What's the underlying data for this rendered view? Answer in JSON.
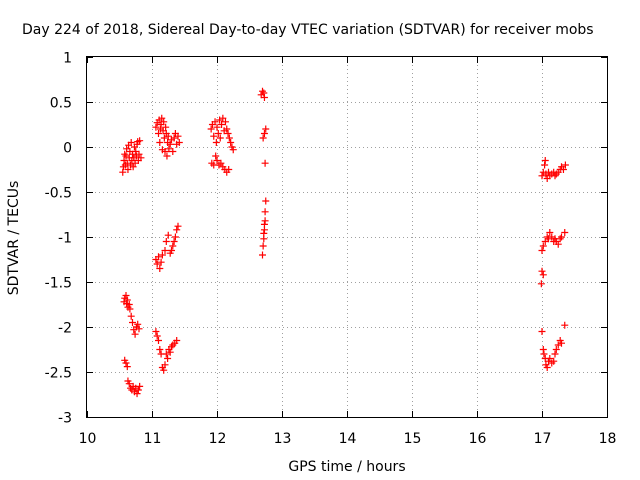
{
  "chart_data": {
    "type": "scatter",
    "title": "Day 224 of 2018, Sidereal Day-to-day VTEC variation (SDTVAR) for receiver mobs",
    "xlabel": "GPS time / hours",
    "ylabel": "SDTVAR / TECUs",
    "xlim": [
      10,
      18
    ],
    "ylim": [
      -3,
      1
    ],
    "xticks": [
      "10",
      "11",
      "12",
      "13",
      "14",
      "15",
      "16",
      "17",
      "18"
    ],
    "yticks": [
      "1",
      "0.5",
      "0",
      "-0.5",
      "-1",
      "-1.5",
      "-2",
      "-2.5",
      "-3"
    ],
    "grid": true,
    "marker": "plus",
    "color": "#ff0000",
    "series": [
      {
        "name": "SDTVAR",
        "points": [
          [
            10.55,
            -0.28
          ],
          [
            10.56,
            -0.22
          ],
          [
            10.57,
            -0.15
          ],
          [
            10.58,
            -0.08
          ],
          [
            10.59,
            -0.2
          ],
          [
            10.6,
            -0.1
          ],
          [
            10.61,
            -0.02
          ],
          [
            10.62,
            -0.18
          ],
          [
            10.63,
            -0.25
          ],
          [
            10.64,
            0.02
          ],
          [
            10.65,
            -0.12
          ],
          [
            10.66,
            -0.05
          ],
          [
            10.67,
            -0.2
          ],
          [
            10.68,
            0.05
          ],
          [
            10.69,
            -0.15
          ],
          [
            10.7,
            -0.08
          ],
          [
            10.71,
            -0.22
          ],
          [
            10.72,
            -0.12
          ],
          [
            10.73,
            0.0
          ],
          [
            10.74,
            -0.18
          ],
          [
            10.75,
            -0.05
          ],
          [
            10.76,
            -0.1
          ],
          [
            10.77,
            0.03
          ],
          [
            10.78,
            0.06
          ],
          [
            10.79,
            -0.15
          ],
          [
            10.8,
            -0.08
          ],
          [
            10.81,
            0.07
          ],
          [
            10.83,
            -0.12
          ],
          [
            10.57,
            -1.72
          ],
          [
            10.58,
            -1.68
          ],
          [
            10.6,
            -1.65
          ],
          [
            10.61,
            -1.74
          ],
          [
            10.62,
            -1.7
          ],
          [
            10.63,
            -1.78
          ],
          [
            10.65,
            -1.75
          ],
          [
            10.66,
            -1.8
          ],
          [
            10.68,
            -1.88
          ],
          [
            10.7,
            -1.95
          ],
          [
            10.72,
            -2.03
          ],
          [
            10.74,
            -2.08
          ],
          [
            10.76,
            -2.0
          ],
          [
            10.78,
            -1.97
          ],
          [
            10.8,
            -2.02
          ],
          [
            10.58,
            -2.37
          ],
          [
            10.6,
            -2.4
          ],
          [
            10.62,
            -2.44
          ],
          [
            10.63,
            -2.6
          ],
          [
            10.65,
            -2.63
          ],
          [
            10.67,
            -2.68
          ],
          [
            10.69,
            -2.7
          ],
          [
            10.71,
            -2.66
          ],
          [
            10.73,
            -2.72
          ],
          [
            10.75,
            -2.68
          ],
          [
            10.77,
            -2.74
          ],
          [
            10.79,
            -2.7
          ],
          [
            10.81,
            -2.66
          ],
          [
            11.06,
            0.22
          ],
          [
            11.08,
            0.27
          ],
          [
            11.1,
            0.15
          ],
          [
            11.11,
            0.3
          ],
          [
            11.12,
            0.05
          ],
          [
            11.13,
            0.2
          ],
          [
            11.14,
            0.25
          ],
          [
            11.15,
            0.32
          ],
          [
            11.16,
            -0.03
          ],
          [
            11.17,
            0.18
          ],
          [
            11.18,
            0.28
          ],
          [
            11.19,
            0.1
          ],
          [
            11.2,
            -0.05
          ],
          [
            11.21,
            0.22
          ],
          [
            11.22,
            0.15
          ],
          [
            11.23,
            -0.1
          ],
          [
            11.24,
            0.05
          ],
          [
            11.25,
            0.12
          ],
          [
            11.26,
            -0.02
          ],
          [
            11.28,
            0.03
          ],
          [
            11.3,
            0.08
          ],
          [
            11.32,
            -0.05
          ],
          [
            11.34,
            0.1
          ],
          [
            11.36,
            0.15
          ],
          [
            11.38,
            0.03
          ],
          [
            11.4,
            0.12
          ],
          [
            11.42,
            0.05
          ],
          [
            11.06,
            -1.25
          ],
          [
            11.08,
            -1.3
          ],
          [
            11.1,
            -1.22
          ],
          [
            11.12,
            -1.35
          ],
          [
            11.14,
            -1.28
          ],
          [
            11.16,
            -1.2
          ],
          [
            11.2,
            -1.15
          ],
          [
            11.22,
            -1.05
          ],
          [
            11.25,
            -0.98
          ],
          [
            11.28,
            -1.18
          ],
          [
            11.3,
            -1.15
          ],
          [
            11.32,
            -1.1
          ],
          [
            11.34,
            -1.05
          ],
          [
            11.36,
            -1.0
          ],
          [
            11.38,
            -0.92
          ],
          [
            11.4,
            -0.88
          ],
          [
            11.06,
            -2.05
          ],
          [
            11.08,
            -2.1
          ],
          [
            11.1,
            -2.15
          ],
          [
            11.12,
            -2.25
          ],
          [
            11.14,
            -2.3
          ],
          [
            11.16,
            -2.45
          ],
          [
            11.18,
            -2.48
          ],
          [
            11.2,
            -2.42
          ],
          [
            11.22,
            -2.3
          ],
          [
            11.24,
            -2.35
          ],
          [
            11.26,
            -2.25
          ],
          [
            11.28,
            -2.28
          ],
          [
            11.3,
            -2.22
          ],
          [
            11.32,
            -2.2
          ],
          [
            11.35,
            -2.18
          ],
          [
            11.38,
            -2.15
          ],
          [
            11.91,
            0.2
          ],
          [
            11.93,
            0.25
          ],
          [
            11.95,
            0.12
          ],
          [
            11.97,
            0.28
          ],
          [
            11.99,
            0.05
          ],
          [
            12.0,
            0.22
          ],
          [
            12.02,
            0.15
          ],
          [
            12.04,
            0.3
          ],
          [
            12.05,
            0.1
          ],
          [
            12.07,
            0.25
          ],
          [
            12.09,
            0.32
          ],
          [
            12.11,
            0.18
          ],
          [
            12.13,
            0.28
          ],
          [
            12.15,
            0.2
          ],
          [
            12.17,
            0.15
          ],
          [
            12.19,
            0.1
          ],
          [
            12.21,
            0.05
          ],
          [
            12.23,
            0.0
          ],
          [
            12.25,
            -0.03
          ],
          [
            11.92,
            -0.18
          ],
          [
            11.95,
            -0.2
          ],
          [
            11.98,
            -0.1
          ],
          [
            12.0,
            -0.15
          ],
          [
            12.03,
            -0.2
          ],
          [
            12.06,
            -0.18
          ],
          [
            12.09,
            -0.22
          ],
          [
            12.12,
            -0.25
          ],
          [
            12.15,
            -0.28
          ],
          [
            12.18,
            -0.25
          ],
          [
            12.68,
            0.58
          ],
          [
            12.7,
            0.62
          ],
          [
            12.72,
            0.6
          ],
          [
            12.73,
            0.55
          ],
          [
            12.71,
            0.1
          ],
          [
            12.73,
            0.15
          ],
          [
            12.75,
            0.2
          ],
          [
            12.74,
            -0.18
          ],
          [
            12.7,
            -1.2
          ],
          [
            12.71,
            -1.1
          ],
          [
            12.72,
            -1.02
          ],
          [
            12.73,
            -0.92
          ],
          [
            12.74,
            -0.82
          ],
          [
            12.74,
            -0.72
          ],
          [
            12.75,
            -0.6
          ],
          [
            12.72,
            -0.96
          ],
          [
            12.73,
            -0.86
          ],
          [
            17.0,
            -0.32
          ],
          [
            17.02,
            -0.28
          ],
          [
            17.04,
            -0.2
          ],
          [
            17.05,
            -0.15
          ],
          [
            17.06,
            -0.3
          ],
          [
            17.08,
            -0.35
          ],
          [
            17.1,
            -0.28
          ],
          [
            17.12,
            -0.32
          ],
          [
            17.15,
            -0.3
          ],
          [
            17.18,
            -0.28
          ],
          [
            17.2,
            -0.32
          ],
          [
            17.22,
            -0.3
          ],
          [
            17.25,
            -0.28
          ],
          [
            17.28,
            -0.25
          ],
          [
            17.3,
            -0.22
          ],
          [
            17.33,
            -0.25
          ],
          [
            17.36,
            -0.2
          ],
          [
            17.0,
            -1.15
          ],
          [
            17.02,
            -1.1
          ],
          [
            17.05,
            -1.05
          ],
          [
            17.08,
            -1.0
          ],
          [
            17.1,
            -1.02
          ],
          [
            17.12,
            -0.95
          ],
          [
            17.15,
            -1.0
          ],
          [
            17.18,
            -1.05
          ],
          [
            17.2,
            -1.02
          ],
          [
            17.22,
            -1.05
          ],
          [
            17.25,
            -1.08
          ],
          [
            17.28,
            -1.02
          ],
          [
            17.3,
            -1.0
          ],
          [
            17.35,
            -0.95
          ],
          [
            17.0,
            -1.38
          ],
          [
            17.02,
            -1.42
          ],
          [
            16.99,
            -1.52
          ],
          [
            17.0,
            -2.05
          ],
          [
            17.02,
            -2.25
          ],
          [
            17.03,
            -2.3
          ],
          [
            17.05,
            -2.35
          ],
          [
            17.06,
            -2.42
          ],
          [
            17.08,
            -2.45
          ],
          [
            17.1,
            -2.38
          ],
          [
            17.12,
            -2.35
          ],
          [
            17.15,
            -2.4
          ],
          [
            17.18,
            -2.38
          ],
          [
            17.2,
            -2.3
          ],
          [
            17.22,
            -2.25
          ],
          [
            17.25,
            -2.2
          ],
          [
            17.28,
            -2.15
          ],
          [
            17.3,
            -2.18
          ],
          [
            17.35,
            -1.98
          ]
        ]
      }
    ]
  }
}
